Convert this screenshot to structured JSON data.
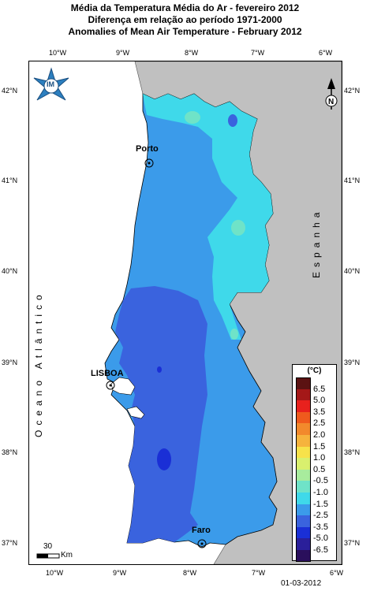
{
  "title": {
    "line1": "Média da Temperatura Média do Ar - fevereiro 2012",
    "line2": "Diferença em relação ao período 1971-2000",
    "line3": "Anomalies of Mean Air Temperature - February 2012"
  },
  "axes": {
    "lon_ticks": [
      "10°W",
      "9°W",
      "8°W",
      "7°W",
      "6°W"
    ],
    "lat_ticks": [
      "42°N",
      "41°N",
      "40°N",
      "39°N",
      "38°N",
      "37°N"
    ]
  },
  "labels": {
    "ocean": "Oceano Atlântico",
    "spain": "Espanha",
    "logo_text": "IM"
  },
  "cities": [
    {
      "name": "Porto"
    },
    {
      "name": "LISBOA"
    },
    {
      "name": "Faro"
    }
  ],
  "legend": {
    "title": "(°C)",
    "items": [
      {
        "label": "6.5",
        "color": "#5b1212"
      },
      {
        "label": "5.0",
        "color": "#a41818"
      },
      {
        "label": "3.5",
        "color": "#e8211d"
      },
      {
        "label": "2.5",
        "color": "#ef5a1d"
      },
      {
        "label": "2.0",
        "color": "#f2892c"
      },
      {
        "label": "1.5",
        "color": "#f6b33d"
      },
      {
        "label": "1.0",
        "color": "#f7e24a"
      },
      {
        "label": "0.5",
        "color": "#d9f06e"
      },
      {
        "label": "-0.5",
        "color": "#a8ec9d"
      },
      {
        "label": "-1.0",
        "color": "#6fe3c8"
      },
      {
        "label": "-1.5",
        "color": "#3fd9ea"
      },
      {
        "label": "-2.5",
        "color": "#3b9bea"
      },
      {
        "label": "-3.5",
        "color": "#3a63de"
      },
      {
        "label": "-5.0",
        "color": "#1a2fd6"
      },
      {
        "label": "-6.5",
        "color": "#2a1f9a"
      },
      {
        "label": "",
        "color": "#2a0f5c"
      }
    ]
  },
  "scale": {
    "value": "30",
    "unit": "Km"
  },
  "date": "01-03-2012",
  "colors": {
    "land_spain": "#c0c0c0",
    "ocean": "#ffffff",
    "anomaly_light": "#3fd9ea",
    "anomaly_mid": "#3b9bea",
    "anomaly_strong": "#3a63de",
    "anomaly_core": "#1a2fd6",
    "anomaly_pale": "#6fe3c8"
  }
}
